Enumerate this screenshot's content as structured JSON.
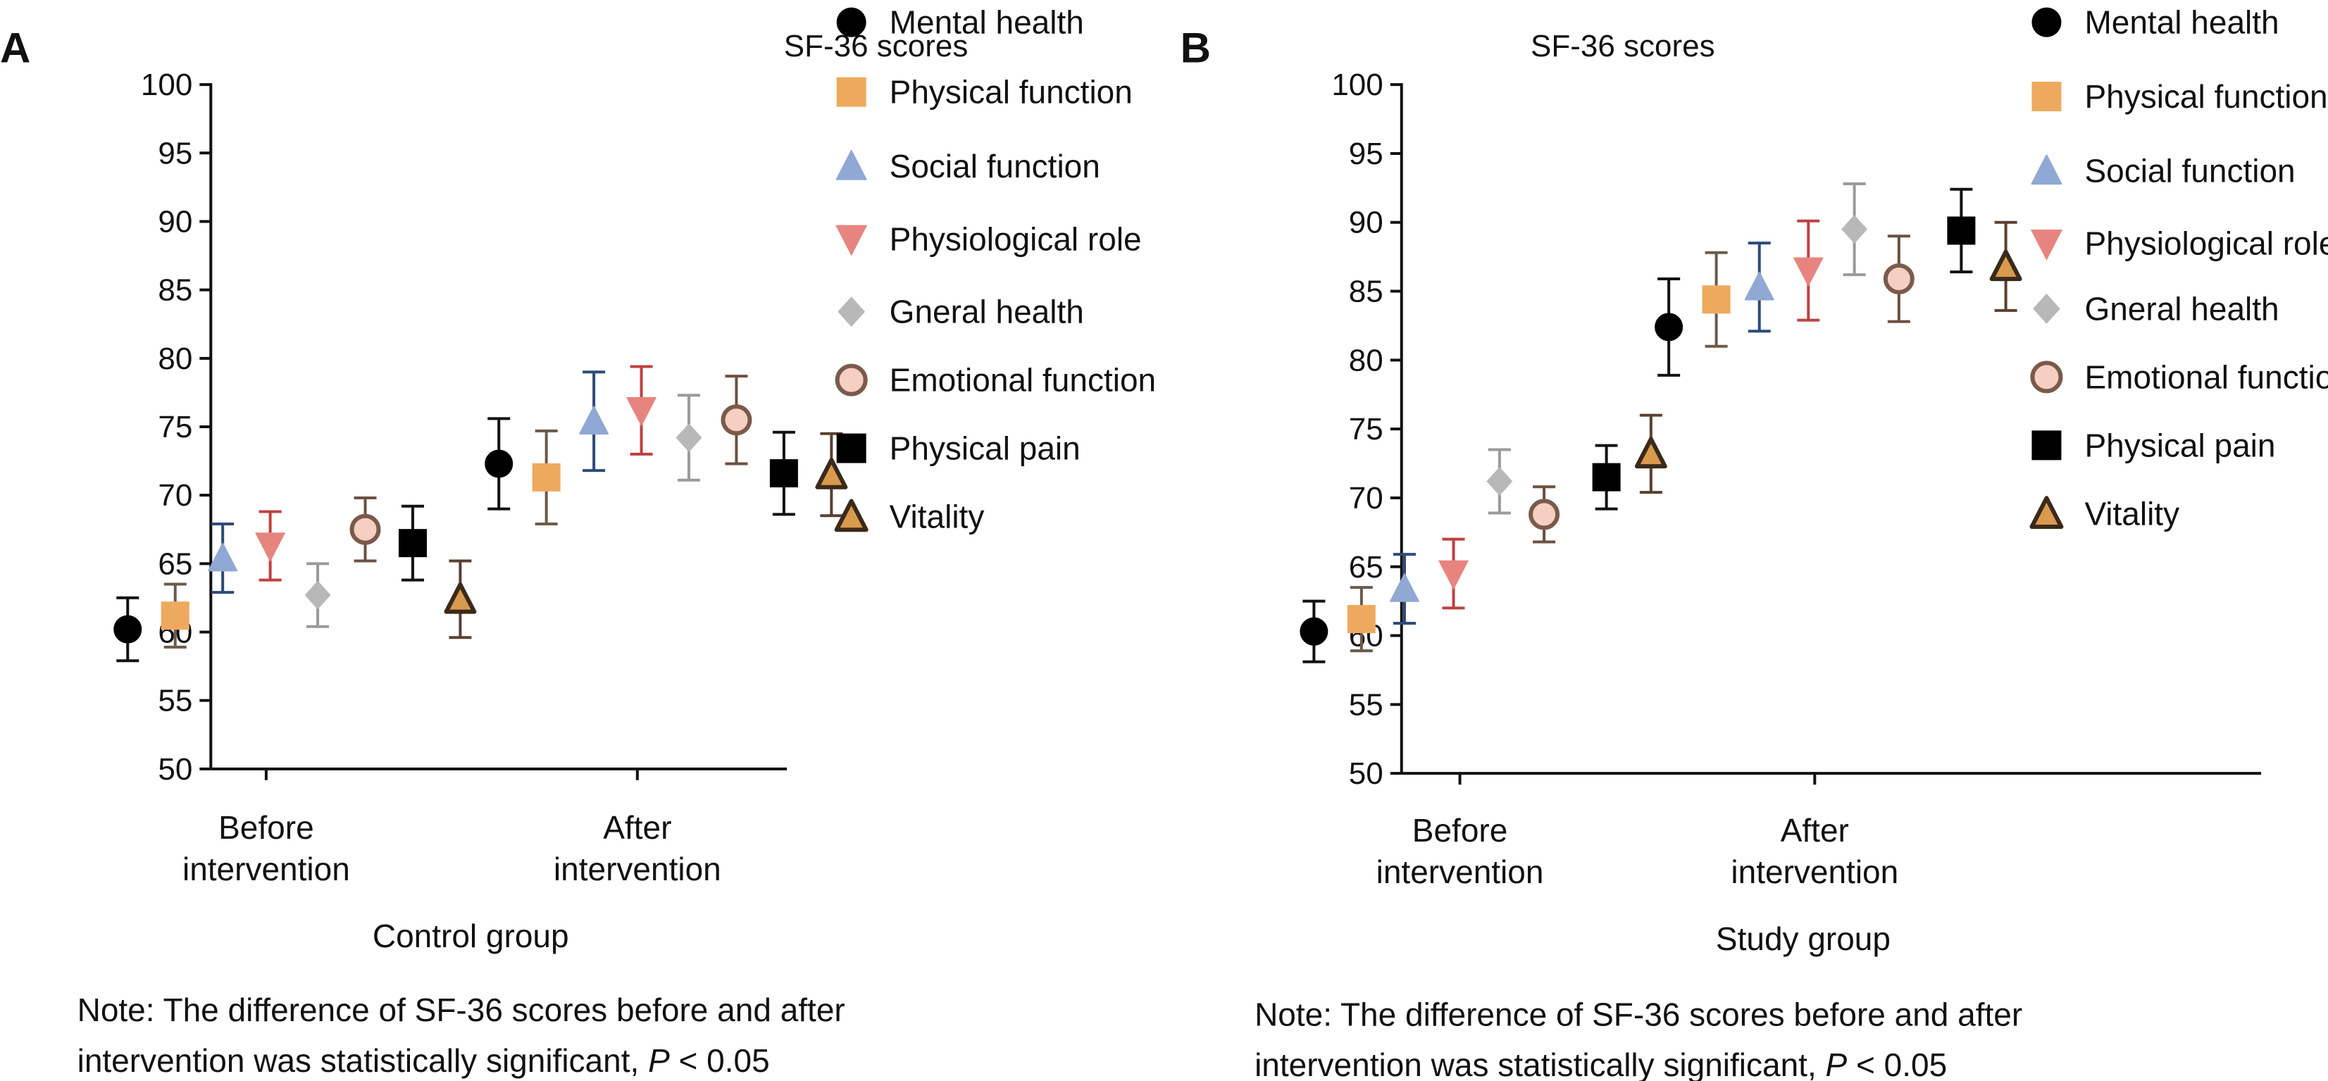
{
  "chart_data": [
    {
      "panel_label": "A",
      "type": "scatter",
      "title": "SF-36 scores",
      "xlabel": "Control group",
      "ylabel": "",
      "categories": [
        "Before\nintervention",
        "After\nintervention"
      ],
      "ylim": [
        50,
        100
      ],
      "yticks": [
        50,
        55,
        60,
        65,
        70,
        75,
        80,
        85,
        90,
        95,
        100
      ],
      "grid": false,
      "legend_placement": "right",
      "series": [
        {
          "name": "Mental health",
          "values": [
            60.2,
            72.3
          ],
          "errors": [
            2.3,
            3.3
          ]
        },
        {
          "name": "Physical function",
          "values": [
            61.2,
            71.3
          ],
          "errors": [
            2.3,
            3.4
          ]
        },
        {
          "name": "Social function",
          "values": [
            65.4,
            75.4
          ],
          "errors": [
            2.5,
            3.6
          ]
        },
        {
          "name": "Physiological role",
          "values": [
            66.3,
            76.2
          ],
          "errors": [
            2.5,
            3.2
          ]
        },
        {
          "name": "Gneral health",
          "values": [
            62.7,
            74.2
          ],
          "errors": [
            2.3,
            3.1
          ]
        },
        {
          "name": "Emotional function",
          "values": [
            67.5,
            75.5
          ],
          "errors": [
            2.3,
            3.2
          ]
        },
        {
          "name": "Physical pain",
          "values": [
            66.5,
            71.6
          ],
          "errors": [
            2.7,
            3.0
          ]
        },
        {
          "name": "Vitality",
          "values": [
            62.4,
            71.5
          ],
          "errors": [
            2.8,
            3.0
          ]
        }
      ],
      "note": {
        "line1": "Note: The difference of SF-36 scores before and after",
        "line2_prefix": "intervention was statistically significant,",
        "p_symbol": "P",
        "p_suffix": "< 0.05"
      }
    },
    {
      "panel_label": "B",
      "type": "scatter",
      "title": "SF-36 scores",
      "xlabel": "Study group",
      "ylabel": "",
      "categories": [
        "Before\nintervention",
        "After\nintervention"
      ],
      "ylim": [
        50,
        100
      ],
      "yticks": [
        50,
        55,
        60,
        65,
        70,
        75,
        80,
        85,
        90,
        95,
        100
      ],
      "grid": false,
      "legend_placement": "right",
      "series": [
        {
          "name": "Mental health",
          "values": [
            60.3,
            82.4
          ],
          "errors": [
            2.2,
            3.5
          ]
        },
        {
          "name": "Physical function",
          "values": [
            61.2,
            84.4
          ],
          "errors": [
            2.3,
            3.4
          ]
        },
        {
          "name": "Social function",
          "values": [
            63.4,
            85.3
          ],
          "errors": [
            2.5,
            3.2
          ]
        },
        {
          "name": "Physiological role",
          "values": [
            64.5,
            86.5
          ],
          "errors": [
            2.5,
            3.6
          ]
        },
        {
          "name": "Gneral health",
          "values": [
            71.2,
            89.5
          ],
          "errors": [
            2.3,
            3.3
          ]
        },
        {
          "name": "Emotional function",
          "values": [
            68.8,
            85.9
          ],
          "errors": [
            2.0,
            3.1
          ]
        },
        {
          "name": "Physical pain",
          "values": [
            71.5,
            89.4
          ],
          "errors": [
            2.3,
            3.0
          ]
        },
        {
          "name": "Vitality",
          "values": [
            73.2,
            86.8
          ],
          "errors": [
            2.8,
            3.2
          ]
        }
      ],
      "note": {
        "line1": "Note: The difference of SF-36 scores before and after",
        "line2_prefix": "intervention was statistically significant,",
        "p_symbol": "P",
        "p_suffix": "< 0.05"
      }
    }
  ],
  "series_style": [
    {
      "marker": "circle",
      "fill": "#000000",
      "edge": "#000000",
      "errorbar_color": "#111111"
    },
    {
      "marker": "square",
      "fill": "#EDAA5F",
      "edge": "#EDAA5F",
      "errorbar_color": "#6b5a4a"
    },
    {
      "marker": "triangle-up",
      "fill": "#8FA8D4",
      "edge": "#8FA8D4",
      "errorbar_color": "#2e4a78"
    },
    {
      "marker": "triangle-down",
      "fill": "#E8847F",
      "edge": "#E8847F",
      "errorbar_color": "#c04040"
    },
    {
      "marker": "diamond",
      "fill": "#B8B8B8",
      "edge": "#B8B8B8",
      "errorbar_color": "#9a9a9a"
    },
    {
      "marker": "circle",
      "fill": "#F5CFC2",
      "edge": "#7a5a4a",
      "errorbar_color": "#6b5040"
    },
    {
      "marker": "square",
      "fill": "#000000",
      "edge": "#000000",
      "errorbar_color": "#111111"
    },
    {
      "marker": "triangle-up",
      "fill": "#D99A4E",
      "edge": "#3a2a1a",
      "errorbar_color": "#5a4030"
    }
  ]
}
